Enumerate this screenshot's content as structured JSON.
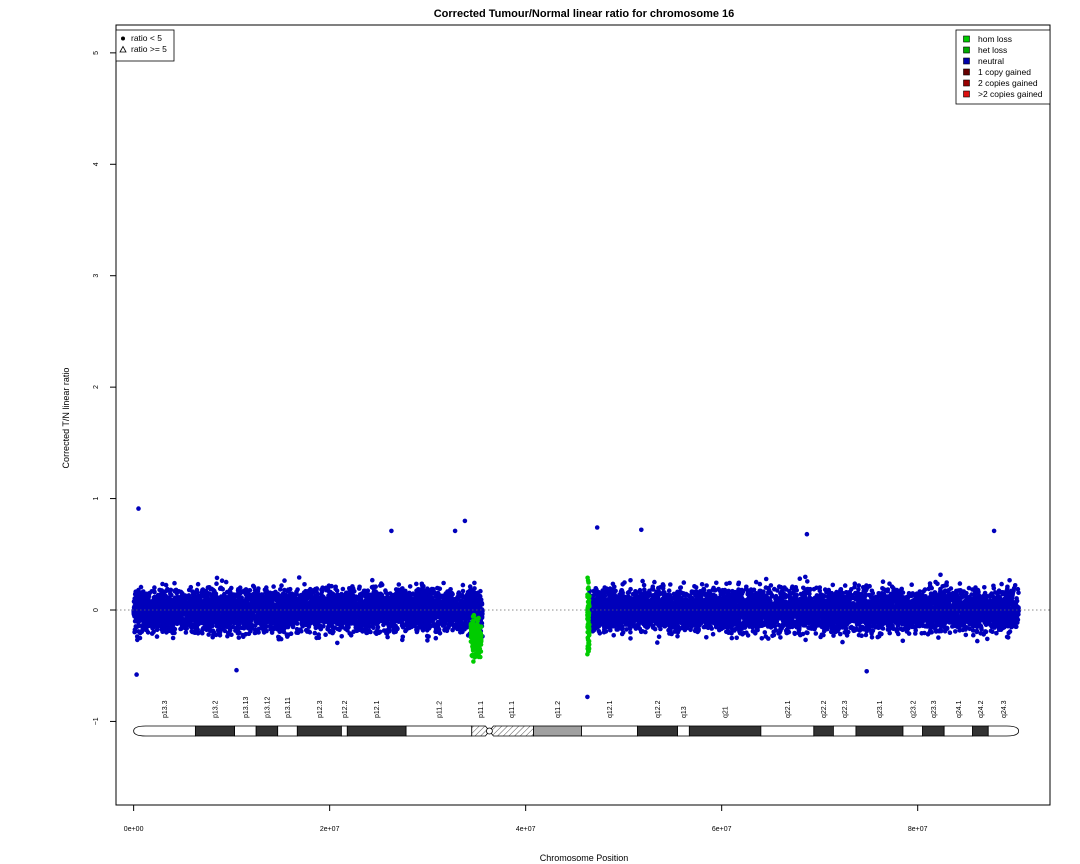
{
  "chart_data": {
    "type": "scatter",
    "title": "Corrected Tumour/Normal linear ratio for chromosome  16",
    "xlabel": "Chromosome Position",
    "ylabel": "Corrected T/N linear ratio",
    "xlim": [
      -1800000,
      93500000
    ],
    "ylim": [
      -1.75,
      5.25
    ],
    "x_ticks": [
      {
        "value": 0,
        "label": "0e+00"
      },
      {
        "value": 20000000,
        "label": "2e+07"
      },
      {
        "value": 40000000,
        "label": "4e+07"
      },
      {
        "value": 60000000,
        "label": "6e+07"
      },
      {
        "value": 80000000,
        "label": "8e+07"
      }
    ],
    "y_ticks": [
      {
        "value": -1,
        "label": "−1"
      },
      {
        "value": 0,
        "label": "0"
      },
      {
        "value": 1,
        "label": "1"
      },
      {
        "value": 2,
        "label": "2"
      },
      {
        "value": 3,
        "label": "3"
      },
      {
        "value": 4,
        "label": "4"
      },
      {
        "value": 5,
        "label": "5"
      }
    ],
    "reference_line": {
      "y": 0,
      "style": "dotted"
    },
    "shape_legend": {
      "placement": "top-left",
      "items": [
        {
          "label": "ratio < 5",
          "shape": "circle"
        },
        {
          "label": "ratio >= 5",
          "shape": "triangle"
        }
      ]
    },
    "state_legend": {
      "placement": "top-right",
      "items": [
        {
          "label": "hom loss",
          "color": "#00cc00"
        },
        {
          "label": "het loss",
          "color": "#00aa00"
        },
        {
          "label": "neutral",
          "color": "#0000aa"
        },
        {
          "label": "1 copy gained",
          "color": "#660000"
        },
        {
          "label": "2 copies gained",
          "color": "#990000"
        },
        {
          "label": ">2 copies gained",
          "color": "#dd1111"
        }
      ]
    },
    "series": [
      {
        "name": "neutral",
        "color": "#0000bb",
        "segments": [
          {
            "x": [
              0,
              33900000
            ],
            "mean": 0.0,
            "sd": 0.16
          },
          {
            "x": [
              34000000,
              35600000
            ],
            "mean": 0.0,
            "sd": 0.18
          },
          {
            "x": [
              46500000,
              90300000
            ],
            "mean": 0.0,
            "sd": 0.16
          }
        ],
        "outliers": [
          {
            "x": 500000,
            "y": 0.91
          },
          {
            "x": 33800000,
            "y": 0.8
          },
          {
            "x": 32800000,
            "y": 0.71
          },
          {
            "x": 26300000,
            "y": 0.71
          },
          {
            "x": 47300000,
            "y": 0.74
          },
          {
            "x": 51800000,
            "y": 0.72
          },
          {
            "x": 87800000,
            "y": 0.71
          },
          {
            "x": 68700000,
            "y": 0.68
          },
          {
            "x": 46300000,
            "y": -0.78
          },
          {
            "x": 300000,
            "y": -0.58
          },
          {
            "x": 74800000,
            "y": -0.55
          },
          {
            "x": 10500000,
            "y": -0.54
          }
        ]
      },
      {
        "name": "het loss",
        "color": "#00cc00",
        "segments": [
          {
            "x": [
              34400000,
              35500000
            ],
            "mean": -0.25,
            "sd": 0.14
          },
          {
            "x": [
              46300000,
              46500000
            ],
            "mean": -0.1,
            "sd": 0.3
          }
        ]
      }
    ],
    "ideogram": {
      "chromosome": "16",
      "centromere": 36300000,
      "bands": [
        {
          "name": "p13.3",
          "start": 0,
          "end": 6300000,
          "stain": "gneg"
        },
        {
          "name": "p13.2",
          "start": 6300000,
          "end": 10300000,
          "stain": "gpos"
        },
        {
          "name": "p13.13",
          "start": 10300000,
          "end": 12500000,
          "stain": "gneg"
        },
        {
          "name": "p13.12",
          "start": 12500000,
          "end": 14700000,
          "stain": "gpos"
        },
        {
          "name": "p13.11",
          "start": 14700000,
          "end": 16700000,
          "stain": "gneg"
        },
        {
          "name": "p12.3",
          "start": 16700000,
          "end": 21200000,
          "stain": "gpos"
        },
        {
          "name": "p12.2",
          "start": 21200000,
          "end": 21800000,
          "stain": "gneg"
        },
        {
          "name": "p12.1",
          "start": 21800000,
          "end": 27800000,
          "stain": "gpos"
        },
        {
          "name": "p11.2",
          "start": 27800000,
          "end": 34500000,
          "stain": "gneg"
        },
        {
          "name": "p11.1",
          "start": 34500000,
          "end": 36300000,
          "stain": "acen"
        },
        {
          "name": "q11.1",
          "start": 36300000,
          "end": 40800000,
          "stain": "acen"
        },
        {
          "name": "q11.2",
          "start": 40800000,
          "end": 45700000,
          "stain": "gvar"
        },
        {
          "name": "q12.1",
          "start": 45700000,
          "end": 51400000,
          "stain": "gneg"
        },
        {
          "name": "q12.2",
          "start": 51400000,
          "end": 55500000,
          "stain": "gpos"
        },
        {
          "name": "q13",
          "start": 55500000,
          "end": 56700000,
          "stain": "gneg"
        },
        {
          "name": "q21",
          "start": 56700000,
          "end": 64000000,
          "stain": "gpos"
        },
        {
          "name": "q22.1",
          "start": 64000000,
          "end": 69400000,
          "stain": "gneg"
        },
        {
          "name": "q22.2",
          "start": 69400000,
          "end": 71400000,
          "stain": "gpos"
        },
        {
          "name": "q22.3",
          "start": 71400000,
          "end": 73700000,
          "stain": "gneg"
        },
        {
          "name": "q23.1",
          "start": 73700000,
          "end": 78500000,
          "stain": "gpos"
        },
        {
          "name": "q23.2",
          "start": 78500000,
          "end": 80500000,
          "stain": "gneg"
        },
        {
          "name": "q23.3",
          "start": 80500000,
          "end": 82700000,
          "stain": "gpos"
        },
        {
          "name": "q24.1",
          "start": 82700000,
          "end": 85600000,
          "stain": "gneg"
        },
        {
          "name": "q24.2",
          "start": 85600000,
          "end": 87200000,
          "stain": "gpos"
        },
        {
          "name": "q24.3",
          "start": 87200000,
          "end": 90300000,
          "stain": "gneg"
        }
      ]
    }
  }
}
